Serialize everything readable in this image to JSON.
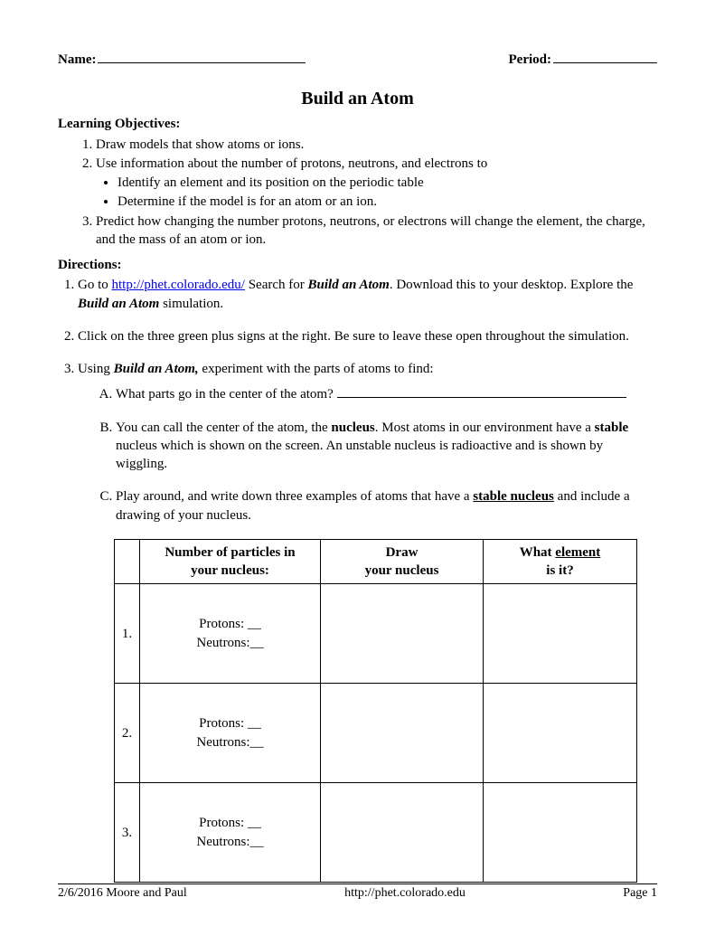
{
  "header": {
    "name_label": "Name:",
    "period_label": "Period:"
  },
  "title": "Build an Atom",
  "objectives": {
    "heading": "Learning Objectives:",
    "items": [
      "Draw models that show atoms or ions.",
      "Use information about the number of protons, neutrons, and electrons to",
      "Predict how changing the number protons, neutrons, or electrons will change the element, the charge, and the mass of an atom or ion."
    ],
    "sub_items": [
      "Identify an element and its position on the periodic table",
      "Determine if the model is for an atom or an ion."
    ]
  },
  "directions": {
    "heading": "Directions:",
    "d1_pre": "Go to ",
    "d1_link": "http://phet.colorado.edu/",
    "d1_mid": "   Search for ",
    "d1_app": "Build an Atom",
    "d1_post": ".  Download this to your desktop. Explore the ",
    "d1_app2": "Build an Atom",
    "d1_tail": " simulation.",
    "d2": "Click on the three green plus signs at the right.  Be sure to leave these open throughout the simulation.",
    "d3_pre": "Using ",
    "d3_app": "Build an Atom,",
    "d3_post": " experiment with the parts of atoms to find:",
    "a_text": "What parts go in the center of the atom?   ",
    "b_pre": "You can call the center of the atom, the ",
    "b_nucleus": "nucleus",
    "b_mid": ". Most atoms in our environment have a ",
    "b_stable": "stable",
    "b_post": " nucleus which is shown on the screen.  An unstable nucleus is radioactive and is shown by wiggling.",
    "c_pre": "Play around, and write down three examples of atoms that have a ",
    "c_stable_nucleus": "stable nucleus",
    "c_post": " and include a drawing of your nucleus."
  },
  "table": {
    "col1_line1": "Number of particles in",
    "col1_line2": "your nucleus:",
    "col2_line1": "Draw",
    "col2_line2": "your nucleus",
    "col3_line1": "What ",
    "col3_element": "element",
    "col3_line2": "is it?",
    "row_labels": [
      "1.",
      "2.",
      "3."
    ],
    "protons_label": "Protons: __",
    "neutrons_label": "Neutrons:__"
  },
  "footer": {
    "left": "2/6/2016 Moore and Paul",
    "center": "http://phet.colorado.edu",
    "right": "Page 1"
  }
}
